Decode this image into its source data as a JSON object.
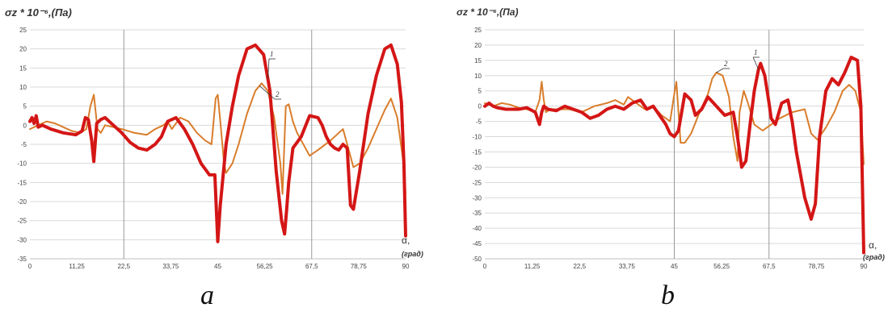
{
  "chart_data": [
    {
      "type": "line",
      "ylabel": "σz * 10⁻⁶,(Па)",
      "xlabel": "α,",
      "xunit": "(град)",
      "panel_letter": "a",
      "xlim": [
        0,
        90
      ],
      "ylim": [
        -35,
        25
      ],
      "xticks": [
        "0",
        "11,25",
        "22,5",
        "33,75",
        "45",
        "56,25",
        "67,5",
        "78,75",
        "90"
      ],
      "yticks": [
        "25",
        "20",
        "15",
        "10",
        "5",
        "0",
        "-5",
        "-10",
        "-15",
        "-20",
        "-25",
        "-30",
        "-35"
      ],
      "grid": "horizontal",
      "series": [
        {
          "name": "1",
          "color": "#d41616",
          "x": [
            0,
            0.5,
            1,
            1.5,
            2,
            3,
            5,
            8,
            11,
            12.5,
            13.3,
            14,
            14.8,
            15.3,
            16,
            17,
            18,
            20,
            22,
            24,
            26,
            28,
            30,
            31.5,
            33,
            35,
            37,
            39,
            41,
            43,
            44.3,
            45,
            45.6,
            46.3,
            47,
            48.5,
            50,
            52,
            54,
            56,
            57.5,
            59,
            60.3,
            61,
            61.5,
            62,
            63,
            65,
            67,
            69,
            70,
            71,
            72,
            73,
            74,
            75,
            76,
            76.8,
            77.5,
            79,
            81,
            83,
            85,
            86.5,
            88,
            89,
            89.6,
            90
          ],
          "values": [
            1,
            2,
            0.5,
            2.5,
            -0.5,
            0,
            -1,
            -2,
            -2.5,
            -1.5,
            2,
            1.5,
            -4,
            -9.5,
            0.5,
            1.5,
            2,
            0,
            -2,
            -4.5,
            -6,
            -6.5,
            -5,
            -3,
            1,
            2,
            -1,
            -5,
            -10,
            -13,
            -13,
            -30.5,
            -21,
            -13,
            -5,
            5,
            13,
            20,
            21,
            18.5,
            9,
            -12,
            -25,
            -28.5,
            -22,
            -15,
            -6,
            -3,
            2.5,
            2,
            0,
            -3,
            -5,
            -6,
            -6.5,
            -5,
            -6,
            -21,
            -22,
            -12,
            3,
            13,
            20,
            21,
            16,
            6,
            -10,
            -29
          ]
        },
        {
          "name": "2",
          "color": "#d97d2b",
          "x": [
            0,
            2,
            4,
            6,
            8,
            10,
            12,
            13.5,
            14.5,
            15.3,
            16.2,
            17,
            18,
            20,
            22,
            25,
            28,
            30,
            32,
            33,
            34,
            36,
            38,
            40,
            42,
            43.5,
            44.5,
            45,
            45.7,
            46.5,
            47,
            48.5,
            50,
            52,
            54,
            55.5,
            57,
            58.5,
            60,
            60.5,
            61.3,
            62,
            63,
            64,
            66,
            67,
            69,
            72,
            74,
            75,
            75.5,
            76.5,
            77.5,
            79,
            81,
            83,
            85,
            86.5,
            88,
            89.5,
            90
          ],
          "values": [
            -1,
            0,
            1,
            0.5,
            -0.5,
            -1.5,
            -2,
            -1,
            5,
            8,
            -1,
            -2,
            0,
            -0.5,
            -1,
            -2,
            -2.5,
            -1,
            0,
            1,
            -1,
            2,
            1,
            -2,
            -4,
            -5,
            7,
            8,
            0,
            -10,
            -12.5,
            -10,
            -5,
            3,
            9,
            11,
            9,
            2,
            -10,
            -18,
            5,
            5.5,
            1,
            -2,
            -6,
            -8,
            -6.5,
            -4,
            -2,
            -1,
            -3,
            -7,
            -11,
            -10,
            -6,
            -1,
            4,
            7,
            2,
            -10,
            -18
          ]
        }
      ]
    },
    {
      "type": "line",
      "ylabel": "σz * 10⁻⁶,(Па)",
      "xlabel": "α,",
      "xunit": "(град)",
      "panel_letter": "b",
      "xlim": [
        0,
        90
      ],
      "ylim": [
        -50,
        25
      ],
      "xticks": [
        "0",
        "11,25",
        "22,5",
        "33,75",
        "45",
        "56,25",
        "67,5",
        "78,75",
        "90"
      ],
      "yticks": [
        "25",
        "20",
        "15",
        "10",
        "5",
        "0",
        "-5",
        "-10",
        "-15",
        "-20",
        "-25",
        "-30",
        "-35",
        "-40",
        "-45",
        "-50"
      ],
      "grid": "horizontal",
      "series": [
        {
          "name": "1",
          "color": "#d41616",
          "x": [
            0,
            1,
            2,
            3,
            5,
            8,
            10,
            12,
            13,
            13.5,
            14,
            15,
            17,
            19,
            21,
            23,
            25,
            27,
            29,
            31,
            33,
            35,
            37,
            38.5,
            40,
            42,
            43,
            44,
            45,
            46,
            47.5,
            49,
            50,
            51.5,
            53,
            55,
            57,
            59,
            60,
            61,
            62,
            63,
            64,
            65,
            65.5,
            66.5,
            67.5,
            68,
            69,
            70.5,
            72,
            73,
            74,
            76,
            77.5,
            78.5,
            79.5,
            81,
            82.5,
            84,
            85.5,
            87,
            88.5,
            89.3,
            90
          ],
          "values": [
            0,
            1,
            0,
            -0.5,
            -1,
            -1,
            -0.5,
            -2,
            -6,
            -2,
            0,
            -1,
            -1.5,
            0,
            -1,
            -2,
            -4,
            -3,
            -1,
            0,
            -1,
            1,
            2,
            -1,
            0,
            -4,
            -6,
            -9,
            -10,
            -8,
            4,
            2,
            -3,
            -1,
            3,
            0,
            -3,
            -2,
            -10,
            -20,
            -18,
            -6,
            5,
            12,
            14,
            10,
            1,
            -4,
            -6,
            1,
            2,
            -5,
            -15,
            -30,
            -37,
            -32,
            -10,
            5,
            9,
            7,
            11,
            16,
            15,
            0,
            -48
          ]
        },
        {
          "name": "2",
          "color": "#d97d2b",
          "x": [
            0,
            2,
            4,
            6,
            8,
            10,
            12,
            13,
            13.5,
            14,
            14.5,
            15.5,
            17,
            20,
            23,
            26,
            29,
            31,
            33,
            34,
            36,
            38,
            40,
            42,
            44,
            45,
            45.5,
            46,
            46.5,
            47.5,
            49,
            51,
            53,
            54,
            55,
            56.5,
            58,
            59,
            60,
            60.5,
            61.5,
            62.5,
            64,
            66,
            68,
            70,
            73,
            76,
            77.5,
            79,
            81,
            83,
            85,
            86.5,
            88,
            89.3,
            90
          ],
          "values": [
            1,
            0,
            1,
            0.5,
            -0.5,
            -1,
            -2,
            2,
            8,
            2,
            -2,
            -1,
            -1,
            -1,
            -2,
            0,
            1,
            2,
            0.5,
            3,
            1,
            -1,
            0,
            -3,
            -5,
            4,
            8,
            -2,
            -12,
            -12,
            -9,
            -2,
            4,
            9,
            11,
            10,
            3,
            -10,
            -18,
            -2,
            5,
            1,
            -6,
            -8,
            -6,
            -4,
            -2,
            -1,
            -9,
            -11,
            -7,
            -2,
            5,
            7,
            5,
            -2,
            -19
          ]
        }
      ]
    }
  ]
}
